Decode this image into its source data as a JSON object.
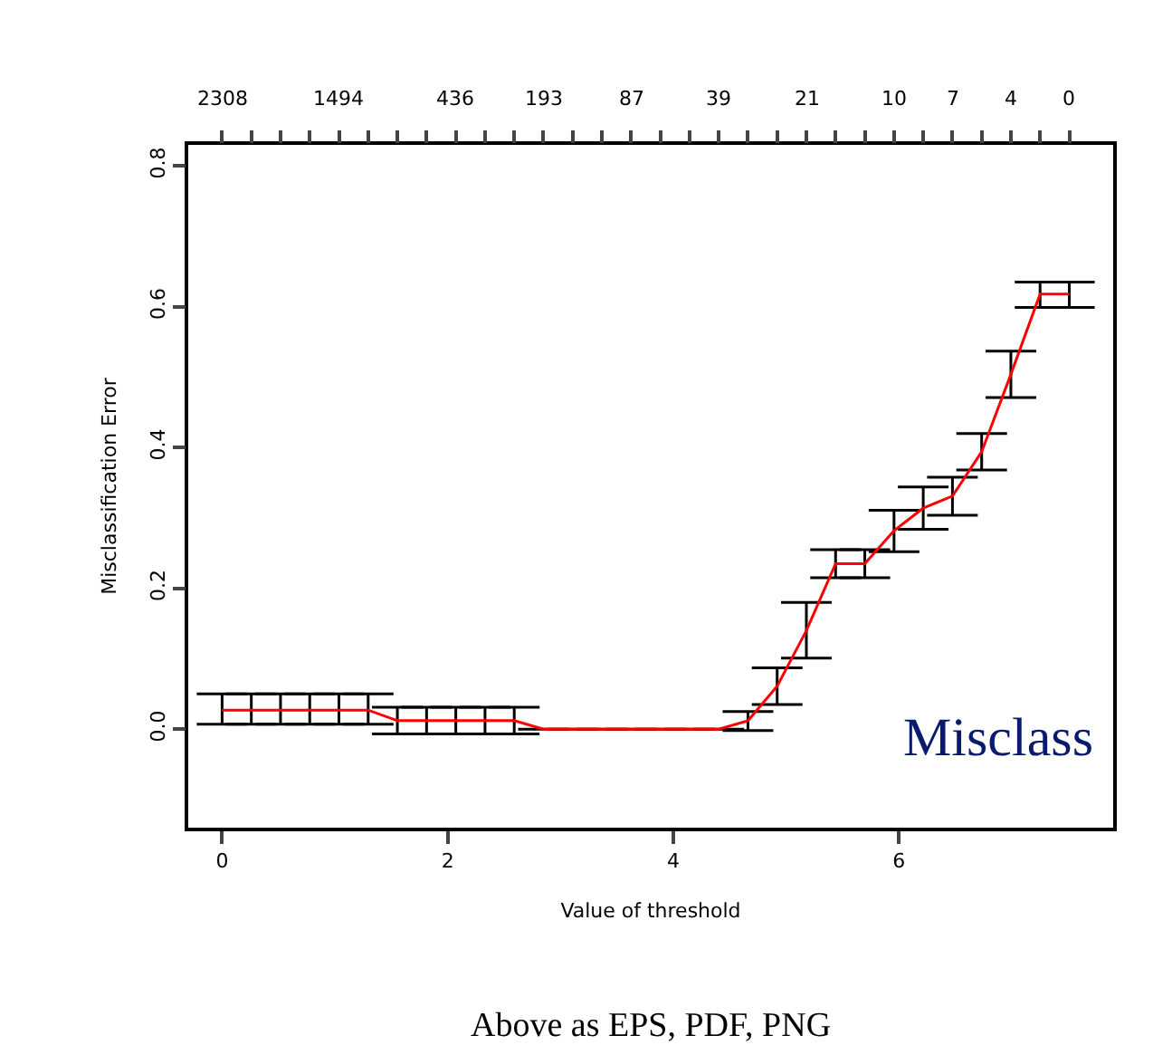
{
  "chart_data": {
    "type": "line",
    "xlabel": "Value of threshold",
    "ylabel": "Misclassification Error",
    "x": [
      0,
      0.259,
      0.518,
      0.777,
      1.036,
      1.295,
      1.554,
      1.813,
      2.072,
      2.331,
      2.59,
      2.849,
      3.108,
      3.367,
      3.626,
      3.885,
      4.144,
      4.403,
      4.662,
      4.921,
      5.18,
      5.439,
      5.698,
      5.957,
      6.216,
      6.475,
      6.734,
      6.993,
      7.252,
      7.511
    ],
    "series": [
      {
        "color": "#ff0000",
        "values": [
          0.027,
          0.027,
          0.027,
          0.027,
          0.027,
          0.027,
          0.012,
          0.012,
          0.012,
          0.012,
          0.012,
          0,
          0,
          0,
          0,
          0,
          0,
          0,
          0.012,
          0.061,
          0.14,
          0.235,
          0.235,
          0.282,
          0.314,
          0.331,
          0.394,
          0.504,
          0.618,
          0.618
        ],
        "errors": [
          [
            0.007,
            0.05
          ],
          [
            0.007,
            0.05
          ],
          [
            0.007,
            0.05
          ],
          [
            0.007,
            0.05
          ],
          [
            0.007,
            0.05
          ],
          [
            0.007,
            0.05
          ],
          [
            -0.007,
            0.031
          ],
          [
            -0.007,
            0.031
          ],
          [
            -0.007,
            0.031
          ],
          [
            -0.007,
            0.031
          ],
          [
            -0.007,
            0.031
          ],
          null,
          null,
          null,
          null,
          null,
          null,
          null,
          [
            -0.002,
            0.025
          ],
          [
            0.035,
            0.087
          ],
          [
            0.101,
            0.18
          ],
          [
            0.215,
            0.255
          ],
          [
            0.215,
            0.255
          ],
          [
            0.252,
            0.311
          ],
          [
            0.284,
            0.344
          ],
          [
            0.304,
            0.358
          ],
          [
            0.368,
            0.42
          ],
          [
            0.471,
            0.537
          ],
          [
            0.599,
            0.635
          ],
          [
            0.599,
            0.635
          ]
        ]
      }
    ],
    "xlim": [
      -0.3,
      7.9
    ],
    "xticks": [
      0,
      2,
      4,
      6
    ],
    "ylim": [
      -0.14,
      0.83
    ],
    "yticks": [
      {
        "value": 0,
        "label": "0.0"
      },
      0.2,
      0.4,
      0.6,
      0.8
    ],
    "marker": "none",
    "line_style": "solid",
    "annotations": [
      "Misclass",
      "Above as EPS, PDF, PNG",
      {
        "text": "2308",
        "x": 0
      },
      {
        "text": "1494",
        "x": 1.036
      },
      {
        "text": "436",
        "x": 2.072
      },
      {
        "text": "193",
        "x": 2.849
      },
      {
        "text": "87",
        "x": 3.626
      },
      {
        "text": "39",
        "x": 4.403
      },
      {
        "text": "21",
        "x": 5.18
      },
      {
        "text": "10",
        "x": 5.957
      },
      {
        "text": "7",
        "x": 6.475
      },
      {
        "text": "4",
        "x": 6.993
      },
      {
        "text": "0",
        "x": 7.511
      }
    ]
  }
}
